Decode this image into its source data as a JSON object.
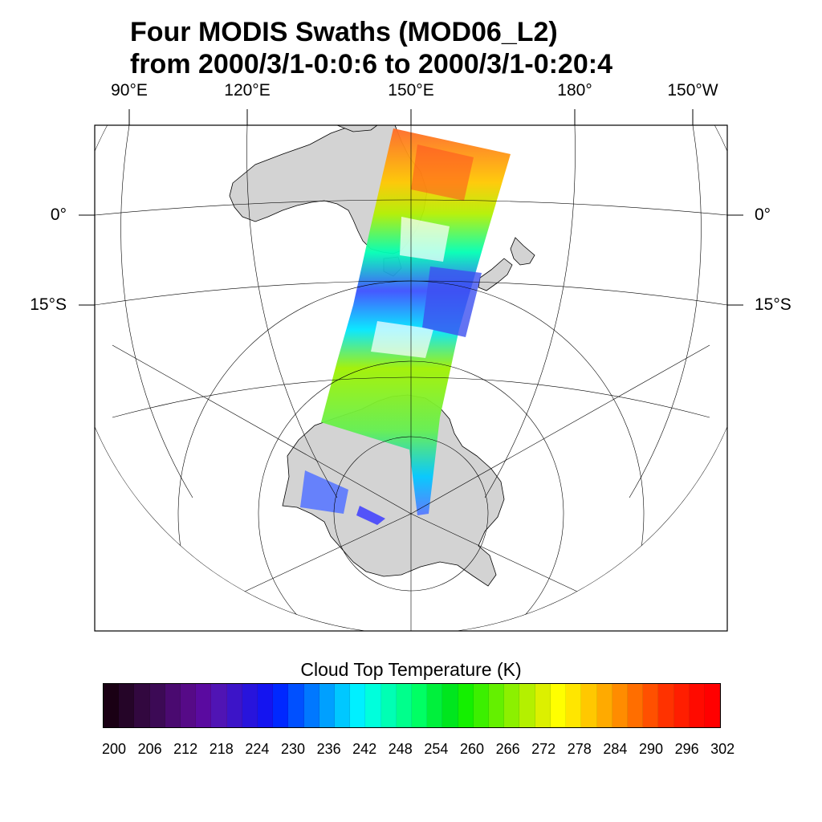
{
  "title": {
    "line1": "Four MODIS Swaths (MOD06_L2)",
    "line2": "from 2000/3/1-0:0:6 to 2000/3/1-0:20:4"
  },
  "axis": {
    "lon_labels": [
      "90°E",
      "120°E",
      "150°E",
      "180°",
      "150°W"
    ],
    "lat_labels": [
      "0°",
      "15°S"
    ]
  },
  "map": {
    "projection": "orthographic-style satellite view centered near 150°E",
    "land_color": "#d3d3d3",
    "coast_color": "#000000",
    "grid_color": "#000000",
    "ocean_color": "#ffffff",
    "regions": [
      "Australia",
      "New Zealand",
      "Antarctica"
    ]
  },
  "colorbar": {
    "title": "Cloud Top Temperature (K)",
    "labels": [
      "200",
      "206",
      "212",
      "218",
      "224",
      "230",
      "236",
      "242",
      "248",
      "254",
      "260",
      "266",
      "272",
      "278",
      "284",
      "290",
      "296",
      "302"
    ],
    "colors": [
      "#1a0014",
      "#250528",
      "#32083f",
      "#3c0a55",
      "#4a0a70",
      "#560a87",
      "#5a0aa0",
      "#5014b4",
      "#3c14c8",
      "#2814dc",
      "#1414f0",
      "#0028ff",
      "#0050ff",
      "#0078ff",
      "#00a0ff",
      "#00c8ff",
      "#00f0ff",
      "#00ffdc",
      "#00ffb4",
      "#00ff8c",
      "#00ff64",
      "#00f03c",
      "#00e61e",
      "#14f000",
      "#3cf000",
      "#64f000",
      "#8cf000",
      "#b4f000",
      "#dcf000",
      "#ffff00",
      "#ffe600",
      "#ffc800",
      "#ffaa00",
      "#ff8c00",
      "#ff6e00",
      "#ff5000",
      "#ff3200",
      "#ff1e00",
      "#ff0a00",
      "#ff0000"
    ]
  }
}
